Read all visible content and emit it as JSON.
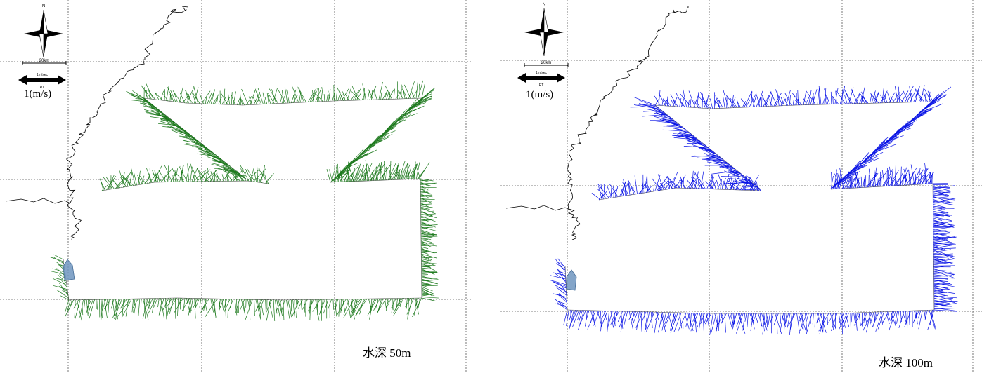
{
  "panels": [
    {
      "id": "panel-50",
      "depth_label": "水深 50m",
      "vector_color": "#1e7a1e",
      "north_label": "N",
      "scale_bar_label": "20km",
      "speed_arrow_label": "1m/sec",
      "speed_arrow_sublabel": "RT",
      "speed_label": "1(m/s)"
    },
    {
      "id": "panel-100",
      "depth_label": "水深 100m",
      "vector_color": "#0a14e6",
      "north_label": "N",
      "scale_bar_label": "20km",
      "speed_arrow_label": "1m/sec",
      "speed_arrow_sublabel": "RT",
      "speed_label": "1(m/s)"
    }
  ],
  "icons": {
    "compass": "compass-rose-icon",
    "vessel": "vessel-marker-icon"
  }
}
